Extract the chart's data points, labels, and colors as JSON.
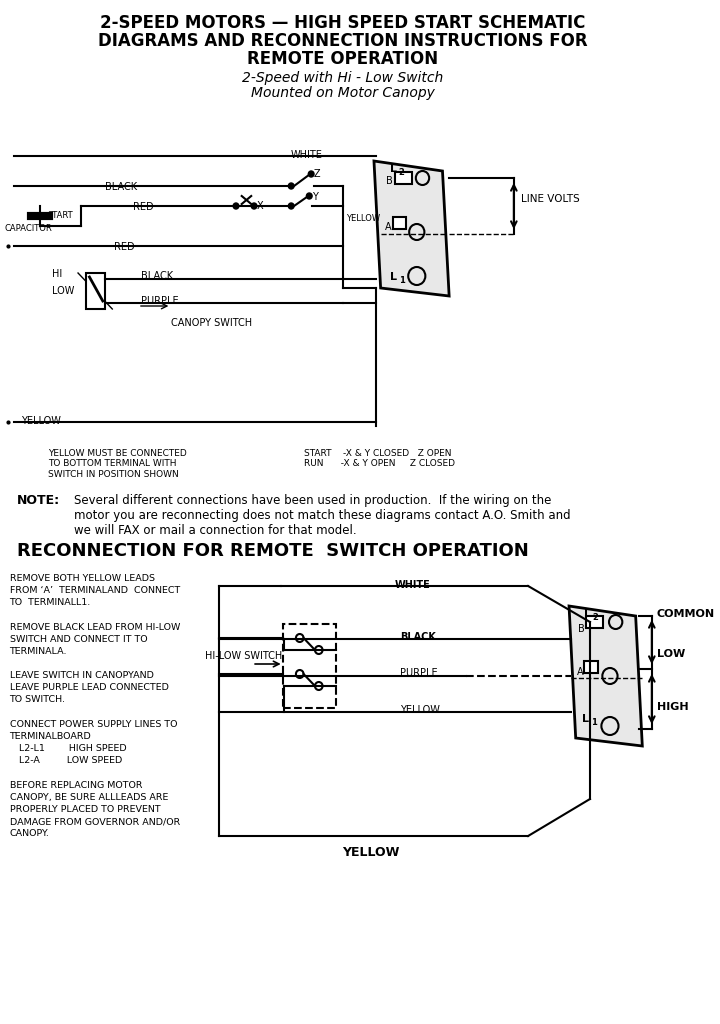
{
  "title_line1": "2-SPEED MOTORS — HIGH SPEED START SCHEMATIC",
  "title_line2": "DIAGRAMS AND RECONNECTION INSTRUCTIONS FOR",
  "title_line3": "REMOTE OPERATION",
  "subtitle_line1": "2-Speed with Hi - Low Switch",
  "subtitle_line2": "Mounted on Motor Canopy",
  "bg_color": "#ffffff",
  "line_color": "#000000",
  "reconnection_title": "RECONNECTION FOR REMOTE  SWITCH OPERATION",
  "bottom_note1": "YELLOW MUST BE CONNECTED\nTO BOTTOM TERMINAL WITH\nSWITCH IN POSITION SHOWN",
  "bottom_note2": "START    -X & Y CLOSED   Z OPEN\nRUN      -X & Y OPEN     Z CLOSED"
}
